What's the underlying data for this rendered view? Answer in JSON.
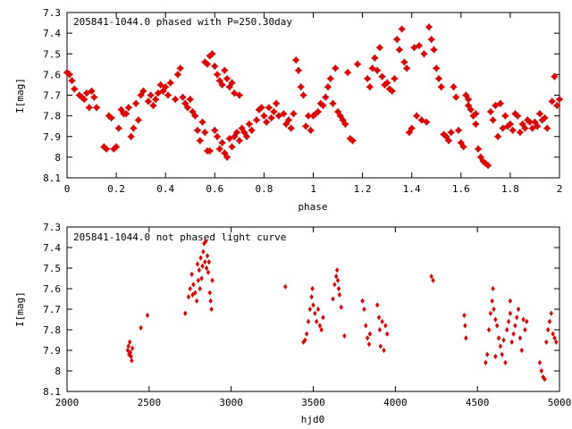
{
  "chart_data": [
    {
      "type": "scatter",
      "title": "205841-1044.0 phased with P=250.30day",
      "xlabel": "phase",
      "ylabel": "I[mag]",
      "xlim": [
        0,
        2
      ],
      "ylim": [
        8.1,
        7.3
      ],
      "y_inverted": true,
      "grid": false,
      "color": "#e00000",
      "marker": "star",
      "xticks": [
        "0",
        "0.2",
        "0.4",
        "0.6",
        "0.8",
        "1",
        "1.2",
        "1.4",
        "1.6",
        "1.8",
        "2"
      ],
      "yticks": [
        "7.3",
        "7.4",
        "7.5",
        "7.6",
        "7.7",
        "7.8",
        "7.9",
        "8",
        "8.1"
      ],
      "points": [
        [
          0.0,
          7.59
        ],
        [
          0.01,
          7.6
        ],
        [
          0.02,
          7.63
        ],
        [
          0.03,
          7.67
        ],
        [
          0.05,
          7.7
        ],
        [
          0.06,
          7.71
        ],
        [
          0.07,
          7.72
        ],
        [
          0.08,
          7.69
        ],
        [
          0.09,
          7.76
        ],
        [
          0.1,
          7.68
        ],
        [
          0.11,
          7.71
        ],
        [
          0.12,
          7.76
        ],
        [
          0.15,
          7.95
        ],
        [
          0.16,
          7.96
        ],
        [
          0.17,
          7.8
        ],
        [
          0.18,
          7.81
        ],
        [
          0.19,
          7.96
        ],
        [
          0.2,
          7.95
        ],
        [
          0.21,
          7.86
        ],
        [
          0.22,
          7.77
        ],
        [
          0.23,
          7.79
        ],
        [
          0.24,
          7.79
        ],
        [
          0.25,
          7.76
        ],
        [
          0.26,
          7.9
        ],
        [
          0.27,
          7.86
        ],
        [
          0.28,
          7.74
        ],
        [
          0.29,
          7.82
        ],
        [
          0.3,
          7.7
        ],
        [
          0.31,
          7.68
        ],
        [
          0.33,
          7.73
        ],
        [
          0.34,
          7.7
        ],
        [
          0.35,
          7.75
        ],
        [
          0.36,
          7.72
        ],
        [
          0.37,
          7.69
        ],
        [
          0.38,
          7.65
        ],
        [
          0.39,
          7.68
        ],
        [
          0.4,
          7.66
        ],
        [
          0.41,
          7.7
        ],
        [
          0.42,
          7.64
        ],
        [
          0.44,
          7.72
        ],
        [
          0.45,
          7.6
        ],
        [
          0.46,
          7.57
        ],
        [
          0.47,
          7.71
        ],
        [
          0.48,
          7.74
        ],
        [
          0.49,
          7.76
        ],
        [
          0.5,
          7.72
        ],
        [
          0.51,
          7.78
        ],
        [
          0.52,
          7.8
        ],
        [
          0.53,
          7.87
        ],
        [
          0.54,
          7.92
        ],
        [
          0.55,
          7.83
        ],
        [
          0.56,
          7.88
        ],
        [
          0.57,
          7.97
        ],
        [
          0.58,
          7.97
        ],
        [
          0.59,
          7.5
        ],
        [
          0.6,
          7.87
        ],
        [
          0.61,
          7.9
        ],
        [
          0.62,
          7.96
        ],
        [
          0.63,
          7.93
        ],
        [
          0.64,
          7.98
        ],
        [
          0.65,
          8.0
        ],
        [
          0.66,
          7.91
        ],
        [
          0.67,
          7.95
        ],
        [
          0.68,
          7.9
        ],
        [
          0.69,
          7.88
        ],
        [
          0.7,
          7.92
        ],
        [
          0.71,
          7.86
        ],
        [
          0.72,
          7.88
        ],
        [
          0.73,
          7.9
        ],
        [
          0.74,
          7.84
        ],
        [
          0.75,
          7.87
        ],
        [
          0.56,
          7.54
        ],
        [
          0.57,
          7.55
        ],
        [
          0.58,
          7.51
        ],
        [
          0.6,
          7.56
        ],
        [
          0.61,
          7.6
        ],
        [
          0.62,
          7.63
        ],
        [
          0.63,
          7.65
        ],
        [
          0.64,
          7.58
        ],
        [
          0.65,
          7.62
        ],
        [
          0.66,
          7.66
        ],
        [
          0.67,
          7.64
        ],
        [
          0.68,
          7.69
        ],
        [
          0.7,
          7.7
        ],
        [
          0.77,
          7.82
        ],
        [
          0.78,
          7.77
        ],
        [
          0.79,
          7.76
        ],
        [
          0.8,
          7.8
        ],
        [
          0.81,
          7.83
        ],
        [
          0.82,
          7.76
        ],
        [
          0.83,
          7.81
        ],
        [
          0.84,
          7.78
        ],
        [
          0.85,
          7.74
        ],
        [
          0.86,
          7.8
        ],
        [
          0.88,
          7.79
        ],
        [
          0.89,
          7.84
        ],
        [
          0.9,
          7.82
        ],
        [
          0.91,
          7.86
        ],
        [
          0.92,
          7.79
        ],
        [
          0.93,
          7.53
        ],
        [
          0.94,
          7.58
        ],
        [
          0.95,
          7.66
        ],
        [
          0.96,
          7.7
        ],
        [
          0.97,
          7.85
        ],
        [
          0.98,
          7.8
        ],
        [
          0.99,
          7.87
        ],
        [
          1.0,
          7.8
        ],
        [
          1.01,
          7.79
        ],
        [
          1.02,
          7.78
        ],
        [
          1.03,
          7.74
        ],
        [
          1.04,
          7.75
        ],
        [
          1.05,
          7.71
        ],
        [
          1.06,
          7.66
        ],
        [
          1.07,
          7.62
        ],
        [
          1.08,
          7.74
        ],
        [
          1.09,
          7.57
        ],
        [
          1.1,
          7.78
        ],
        [
          1.11,
          7.8
        ],
        [
          1.12,
          7.82
        ],
        [
          1.13,
          7.84
        ],
        [
          1.15,
          7.91
        ],
        [
          1.16,
          7.92
        ],
        [
          1.14,
          7.59
        ],
        [
          1.18,
          7.55
        ],
        [
          1.22,
          7.62
        ],
        [
          1.23,
          7.66
        ],
        [
          1.24,
          7.57
        ],
        [
          1.25,
          7.52
        ],
        [
          1.26,
          7.58
        ],
        [
          1.27,
          7.47
        ],
        [
          1.28,
          7.61
        ],
        [
          1.29,
          7.65
        ],
        [
          1.3,
          7.64
        ],
        [
          1.31,
          7.67
        ],
        [
          1.32,
          7.68
        ],
        [
          1.33,
          7.62
        ],
        [
          1.34,
          7.43
        ],
        [
          1.35,
          7.48
        ],
        [
          1.36,
          7.38
        ],
        [
          1.37,
          7.54
        ],
        [
          1.38,
          7.57
        ],
        [
          1.39,
          7.88
        ],
        [
          1.4,
          7.86
        ],
        [
          1.41,
          7.47
        ],
        [
          1.42,
          7.8
        ],
        [
          1.43,
          7.46
        ],
        [
          1.44,
          7.82
        ],
        [
          1.45,
          7.5
        ],
        [
          1.46,
          7.83
        ],
        [
          1.47,
          7.37
        ],
        [
          1.48,
          7.43
        ],
        [
          1.49,
          7.48
        ],
        [
          1.5,
          7.57
        ],
        [
          1.51,
          7.62
        ],
        [
          1.52,
          7.66
        ],
        [
          1.53,
          7.89
        ],
        [
          1.54,
          7.9
        ],
        [
          1.55,
          7.92
        ],
        [
          1.56,
          7.88
        ],
        [
          1.57,
          7.66
        ],
        [
          1.58,
          7.71
        ],
        [
          1.59,
          7.87
        ],
        [
          1.6,
          7.93
        ],
        [
          1.61,
          7.95
        ],
        [
          1.62,
          7.7
        ],
        [
          1.63,
          7.72
        ],
        [
          1.64,
          7.77
        ],
        [
          1.65,
          7.8
        ],
        [
          1.66,
          7.84
        ],
        [
          1.67,
          7.96
        ],
        [
          1.68,
          8.0
        ],
        [
          1.69,
          8.02
        ],
        [
          1.7,
          8.03
        ],
        [
          1.71,
          8.04
        ],
        [
          1.72,
          7.78
        ],
        [
          1.73,
          7.82
        ],
        [
          1.74,
          7.75
        ],
        [
          1.75,
          7.9
        ],
        [
          1.76,
          7.74
        ],
        [
          1.77,
          7.86
        ],
        [
          1.78,
          7.8
        ],
        [
          1.79,
          7.85
        ],
        [
          1.8,
          7.84
        ],
        [
          1.81,
          7.87
        ],
        [
          1.82,
          7.79
        ],
        [
          1.83,
          7.8
        ],
        [
          1.84,
          7.88
        ],
        [
          1.85,
          7.84
        ],
        [
          1.86,
          7.86
        ],
        [
          1.87,
          7.82
        ],
        [
          1.88,
          7.83
        ],
        [
          1.89,
          7.86
        ],
        [
          1.9,
          7.83
        ],
        [
          1.91,
          7.85
        ],
        [
          1.92,
          7.79
        ],
        [
          1.93,
          7.82
        ],
        [
          1.94,
          7.81
        ],
        [
          1.95,
          7.86
        ],
        [
          1.97,
          7.73
        ],
        [
          1.98,
          7.61
        ],
        [
          1.99,
          7.75
        ],
        [
          2.0,
          7.72
        ],
        [
          1.63,
          7.75
        ],
        [
          1.66,
          7.79
        ]
      ]
    },
    {
      "type": "scatter",
      "title": "205841-1044.0 not phased light curve",
      "xlabel": "hjd0",
      "ylabel": "I[mag]",
      "xlim": [
        2000,
        5000
      ],
      "ylim": [
        8.1,
        7.3
      ],
      "y_inverted": true,
      "grid": false,
      "color": "#e00000",
      "marker": "diamond",
      "xticks": [
        "2000",
        "2500",
        "3000",
        "3500",
        "4000",
        "4500",
        "5000"
      ],
      "yticks": [
        "7.3",
        "7.4",
        "7.5",
        "7.6",
        "7.7",
        "7.8",
        "7.9",
        "8",
        "8.1"
      ],
      "points": [
        [
          2370,
          7.9
        ],
        [
          2374,
          7.88
        ],
        [
          2378,
          7.92
        ],
        [
          2382,
          7.86
        ],
        [
          2386,
          7.91
        ],
        [
          2390,
          7.93
        ],
        [
          2394,
          7.95
        ],
        [
          2398,
          7.89
        ],
        [
          2450,
          7.79
        ],
        [
          2490,
          7.73
        ],
        [
          2720,
          7.72
        ],
        [
          2740,
          7.64
        ],
        [
          2750,
          7.6
        ],
        [
          2760,
          7.53
        ],
        [
          2765,
          7.63
        ],
        [
          2770,
          7.58
        ],
        [
          2780,
          7.62
        ],
        [
          2790,
          7.66
        ],
        [
          2795,
          7.48
        ],
        [
          2800,
          7.56
        ],
        [
          2805,
          7.51
        ],
        [
          2810,
          7.6
        ],
        [
          2815,
          7.45
        ],
        [
          2820,
          7.55
        ],
        [
          2825,
          7.49
        ],
        [
          2830,
          7.42
        ],
        [
          2835,
          7.38
        ],
        [
          2840,
          7.47
        ],
        [
          2845,
          7.37
        ],
        [
          2850,
          7.5
        ],
        [
          2855,
          7.44
        ],
        [
          2860,
          7.52
        ],
        [
          2865,
          7.47
        ],
        [
          2870,
          7.62
        ],
        [
          2875,
          7.66
        ],
        [
          2880,
          7.7
        ],
        [
          2885,
          7.56
        ],
        [
          3330,
          7.59
        ],
        [
          3440,
          7.86
        ],
        [
          3450,
          7.85
        ],
        [
          3460,
          7.82
        ],
        [
          3470,
          7.76
        ],
        [
          3480,
          7.7
        ],
        [
          3490,
          7.64
        ],
        [
          3495,
          7.6
        ],
        [
          3500,
          7.68
        ],
        [
          3510,
          7.72
        ],
        [
          3520,
          7.76
        ],
        [
          3530,
          7.7
        ],
        [
          3540,
          7.78
        ],
        [
          3550,
          7.8
        ],
        [
          3560,
          7.74
        ],
        [
          3620,
          7.65
        ],
        [
          3630,
          7.58
        ],
        [
          3640,
          7.54
        ],
        [
          3645,
          7.51
        ],
        [
          3650,
          7.56
        ],
        [
          3655,
          7.6
        ],
        [
          3660,
          7.63
        ],
        [
          3670,
          7.69
        ],
        [
          3690,
          7.83
        ],
        [
          3800,
          7.66
        ],
        [
          3810,
          7.7
        ],
        [
          3820,
          7.78
        ],
        [
          3830,
          7.84
        ],
        [
          3840,
          7.87
        ],
        [
          3845,
          7.82
        ],
        [
          3890,
          7.68
        ],
        [
          3900,
          7.74
        ],
        [
          3905,
          7.8
        ],
        [
          3910,
          7.88
        ],
        [
          3920,
          7.76
        ],
        [
          3930,
          7.9
        ],
        [
          3940,
          7.78
        ],
        [
          3950,
          7.82
        ],
        [
          4220,
          7.54
        ],
        [
          4230,
          7.56
        ],
        [
          4420,
          7.73
        ],
        [
          4425,
          7.78
        ],
        [
          4430,
          7.84
        ],
        [
          4550,
          7.96
        ],
        [
          4560,
          7.92
        ],
        [
          4570,
          7.8
        ],
        [
          4580,
          7.72
        ],
        [
          4590,
          7.66
        ],
        [
          4595,
          7.6
        ],
        [
          4600,
          7.7
        ],
        [
          4610,
          7.75
        ],
        [
          4620,
          7.78
        ],
        [
          4630,
          7.84
        ],
        [
          4640,
          7.88
        ],
        [
          4650,
          7.92
        ],
        [
          4660,
          7.85
        ],
        [
          4670,
          7.96
        ],
        [
          4680,
          7.8
        ],
        [
          4690,
          7.76
        ],
        [
          4700,
          7.72
        ],
        [
          4710,
          7.86
        ],
        [
          4720,
          7.82
        ],
        [
          4730,
          7.78
        ],
        [
          4740,
          7.74
        ],
        [
          4750,
          7.7
        ],
        [
          4760,
          7.84
        ],
        [
          4770,
          7.9
        ],
        [
          4780,
          7.75
        ],
        [
          4790,
          7.8
        ],
        [
          4800,
          7.76
        ],
        [
          4880,
          7.96
        ],
        [
          4890,
          8.0
        ],
        [
          4900,
          8.03
        ],
        [
          4910,
          8.04
        ],
        [
          4920,
          7.86
        ],
        [
          4930,
          7.8
        ],
        [
          4940,
          7.76
        ],
        [
          4950,
          7.72
        ],
        [
          4960,
          7.82
        ],
        [
          4970,
          7.84
        ],
        [
          4980,
          7.86
        ],
        [
          4700,
          7.66
        ],
        [
          4610,
          7.93
        ]
      ]
    }
  ]
}
